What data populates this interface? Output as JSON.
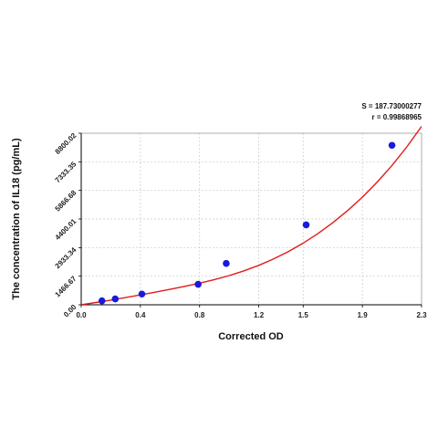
{
  "chart_data": {
    "type": "scatter",
    "xlabel": "Corrected OD",
    "ylabel": "The concentration of IL18 (pg/mL)",
    "xlim": [
      0.0,
      2.3
    ],
    "ylim": [
      0.0,
      8800.02
    ],
    "x_ticks": [
      "0.0",
      "0.4",
      "0.8",
      "1.2",
      "1.5",
      "1.9",
      "2.3"
    ],
    "y_ticks": [
      "0.00",
      "1466.67",
      "2933.34",
      "4400.01",
      "5866.68",
      "7333.35",
      "8800.02"
    ],
    "grid": true,
    "annotations": {
      "s_line": "S = 187.73000277",
      "r_line": "r = 0.99868965"
    },
    "series": [
      {
        "type": "scatter",
        "color": "#1a1adc",
        "points": [
          {
            "x": 0.14,
            "y": 200
          },
          {
            "x": 0.23,
            "y": 300
          },
          {
            "x": 0.41,
            "y": 550
          },
          {
            "x": 0.79,
            "y": 1050
          },
          {
            "x": 0.98,
            "y": 2120
          },
          {
            "x": 1.52,
            "y": 4100
          },
          {
            "x": 2.1,
            "y": 8180
          }
        ]
      },
      {
        "type": "line",
        "color": "#e41a1a",
        "x": [
          0.0,
          0.1,
          0.2,
          0.3,
          0.4,
          0.5,
          0.6,
          0.7,
          0.8,
          0.9,
          1.0,
          1.1,
          1.2,
          1.3,
          1.4,
          1.5,
          1.6,
          1.7,
          1.8,
          1.9,
          2.0,
          2.1,
          2.2,
          2.3
        ],
        "y": [
          0,
          118,
          241,
          370,
          505,
          645,
          792,
          945,
          1108,
          1290,
          1498,
          1740,
          2022,
          2349,
          2729,
          3163,
          3655,
          4210,
          4830,
          5520,
          6290,
          7150,
          8100,
          9150
        ]
      }
    ]
  },
  "colors": {
    "point": "#1a1adc",
    "curve": "#e41a1a",
    "grid": "#c8c8c8",
    "axis": "#000000"
  }
}
